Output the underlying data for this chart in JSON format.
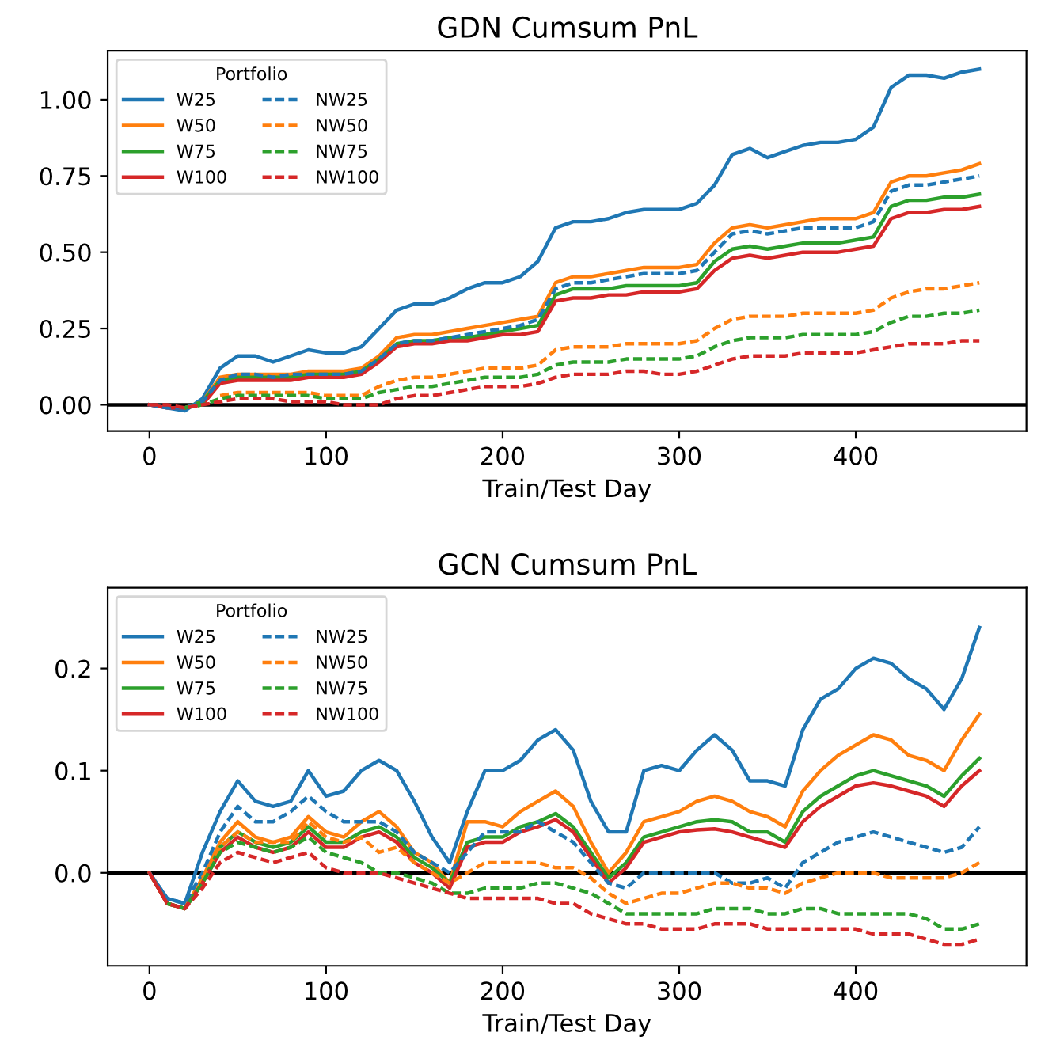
{
  "chart_data": [
    {
      "type": "line",
      "title": "GDN Cumsum PnL",
      "xlabel": "Train/Test Day",
      "legend_title": "Portfolio",
      "legend": "top left",
      "grid": false,
      "xlim": [
        -23.65,
        496.65
      ],
      "xticks": [
        0,
        100,
        200,
        300,
        400
      ],
      "ylim": [
        -0.086,
        1.16
      ],
      "yticks": [
        {
          "value": 0,
          "label": "0.00"
        },
        {
          "value": 0.25,
          "label": "0.25"
        },
        {
          "value": 0.5,
          "label": "0.50"
        },
        {
          "value": 0.75,
          "label": "0.75"
        },
        {
          "value": 1.0,
          "label": "1.00"
        }
      ],
      "ref_lines": [
        {
          "axis": "y",
          "value": 0,
          "label": null,
          "color": "#000000"
        }
      ],
      "x": [
        0,
        10,
        20,
        30,
        40,
        50,
        60,
        70,
        80,
        90,
        100,
        110,
        120,
        130,
        140,
        150,
        160,
        170,
        180,
        190,
        200,
        210,
        220,
        230,
        240,
        250,
        260,
        270,
        280,
        290,
        300,
        310,
        320,
        330,
        340,
        350,
        360,
        370,
        380,
        390,
        400,
        410,
        420,
        430,
        440,
        450,
        460,
        470
      ],
      "series": [
        {
          "name": "W25",
          "color": "#1f77b4",
          "line_style": "solid",
          "values": [
            0,
            -0.01,
            -0.02,
            0.02,
            0.12,
            0.16,
            0.16,
            0.14,
            0.16,
            0.18,
            0.17,
            0.17,
            0.19,
            0.25,
            0.31,
            0.33,
            0.33,
            0.35,
            0.38,
            0.4,
            0.4,
            0.42,
            0.47,
            0.58,
            0.6,
            0.6,
            0.61,
            0.63,
            0.64,
            0.64,
            0.64,
            0.66,
            0.72,
            0.82,
            0.84,
            0.81,
            0.83,
            0.85,
            0.86,
            0.86,
            0.87,
            0.91,
            1.04,
            1.08,
            1.08,
            1.07,
            1.09,
            1.1
          ]
        },
        {
          "name": "W50",
          "color": "#ff7f0e",
          "line_style": "solid",
          "values": [
            null,
            null,
            -0.01,
            0.01,
            0.09,
            0.1,
            0.1,
            0.1,
            0.1,
            0.11,
            0.11,
            0.11,
            0.12,
            0.16,
            0.22,
            0.23,
            0.23,
            0.24,
            0.25,
            0.26,
            0.27,
            0.28,
            0.29,
            0.4,
            0.42,
            0.42,
            0.43,
            0.44,
            0.45,
            0.45,
            0.45,
            0.46,
            0.53,
            0.58,
            0.59,
            0.58,
            0.59,
            0.6,
            0.61,
            0.61,
            0.61,
            0.63,
            0.73,
            0.75,
            0.75,
            0.76,
            0.77,
            0.79
          ]
        },
        {
          "name": "W75",
          "color": "#2ca02c",
          "line_style": "solid",
          "values": [
            null,
            null,
            -0.01,
            0.01,
            0.08,
            0.09,
            0.09,
            0.09,
            0.09,
            0.1,
            0.1,
            0.1,
            0.11,
            0.15,
            0.2,
            0.21,
            0.21,
            0.22,
            0.22,
            0.23,
            0.24,
            0.25,
            0.26,
            0.36,
            0.38,
            0.38,
            0.38,
            0.39,
            0.39,
            0.39,
            0.39,
            0.4,
            0.47,
            0.51,
            0.52,
            0.51,
            0.52,
            0.53,
            0.53,
            0.53,
            0.54,
            0.55,
            0.65,
            0.67,
            0.67,
            0.68,
            0.68,
            0.69
          ]
        },
        {
          "name": "W100",
          "color": "#d62728",
          "line_style": "solid",
          "values": [
            0,
            -0.01,
            -0.01,
            0.0,
            0.07,
            0.08,
            0.08,
            0.08,
            0.08,
            0.09,
            0.09,
            0.09,
            0.1,
            0.14,
            0.19,
            0.2,
            0.2,
            0.21,
            0.21,
            0.22,
            0.23,
            0.23,
            0.24,
            0.34,
            0.35,
            0.35,
            0.36,
            0.36,
            0.37,
            0.37,
            0.37,
            0.38,
            0.44,
            0.48,
            0.49,
            0.48,
            0.49,
            0.5,
            0.5,
            0.5,
            0.51,
            0.52,
            0.61,
            0.63,
            0.63,
            0.64,
            0.64,
            0.65
          ]
        },
        {
          "name": "NW25",
          "color": "#1f77b4",
          "line_style": "dashed",
          "values": [
            0,
            -0.01,
            -0.01,
            0.01,
            0.08,
            0.1,
            0.1,
            0.09,
            0.1,
            0.1,
            0.1,
            0.1,
            0.11,
            0.15,
            0.2,
            0.21,
            0.21,
            0.22,
            0.23,
            0.24,
            0.25,
            0.26,
            0.28,
            0.38,
            0.4,
            0.4,
            0.41,
            0.42,
            0.43,
            0.43,
            0.43,
            0.44,
            0.5,
            0.56,
            0.57,
            0.56,
            0.57,
            0.58,
            0.58,
            0.58,
            0.58,
            0.6,
            0.7,
            0.72,
            0.72,
            0.73,
            0.74,
            0.75
          ]
        },
        {
          "name": "NW50",
          "color": "#ff7f0e",
          "line_style": "dashed",
          "values": [
            null,
            null,
            null,
            null,
            0.03,
            0.04,
            0.04,
            0.04,
            0.04,
            0.04,
            0.03,
            0.03,
            0.03,
            0.06,
            0.08,
            0.09,
            0.09,
            0.1,
            0.11,
            0.12,
            0.12,
            0.12,
            0.13,
            0.18,
            0.19,
            0.19,
            0.19,
            0.2,
            0.2,
            0.2,
            0.2,
            0.21,
            0.25,
            0.28,
            0.29,
            0.29,
            0.29,
            0.3,
            0.3,
            0.3,
            0.3,
            0.31,
            0.35,
            0.37,
            0.38,
            0.38,
            0.39,
            0.4
          ]
        },
        {
          "name": "NW75",
          "color": "#2ca02c",
          "line_style": "dashed",
          "values": [
            null,
            null,
            -0.01,
            0.0,
            0.02,
            0.03,
            0.03,
            0.03,
            0.03,
            0.03,
            0.02,
            0.02,
            0.02,
            0.04,
            0.05,
            0.06,
            0.06,
            0.07,
            0.08,
            0.09,
            0.09,
            0.09,
            0.1,
            0.13,
            0.14,
            0.14,
            0.14,
            0.15,
            0.15,
            0.15,
            0.15,
            0.16,
            0.19,
            0.21,
            0.22,
            0.22,
            0.22,
            0.23,
            0.23,
            0.23,
            0.23,
            0.24,
            0.27,
            0.29,
            0.29,
            0.3,
            0.3,
            0.31
          ]
        },
        {
          "name": "NW100",
          "color": "#d62728",
          "line_style": "dashed",
          "values": [
            0,
            0,
            -0.01,
            0.0,
            0.01,
            0.02,
            0.02,
            0.02,
            0.01,
            0.01,
            0.01,
            0.0,
            0.0,
            0.0,
            0.02,
            0.03,
            0.03,
            0.04,
            0.05,
            0.06,
            0.06,
            0.06,
            0.07,
            0.09,
            0.1,
            0.1,
            0.1,
            0.11,
            0.11,
            0.1,
            0.1,
            0.11,
            0.13,
            0.15,
            0.16,
            0.16,
            0.16,
            0.17,
            0.17,
            0.17,
            0.17,
            0.18,
            0.19,
            0.2,
            0.2,
            0.2,
            0.21,
            0.21
          ]
        }
      ]
    },
    {
      "type": "line",
      "title": "GCN Cumsum PnL",
      "xlabel": "Train/Test Day",
      "legend_title": "Portfolio",
      "legend": "top left",
      "grid": false,
      "xlim": [
        -23.65,
        496.65
      ],
      "xticks": [
        0,
        100,
        200,
        300,
        400
      ],
      "ylim": [
        -0.091,
        0.279
      ],
      "yticks": [
        {
          "value": 0,
          "label": "0.0"
        },
        {
          "value": 0.1,
          "label": "0.1"
        },
        {
          "value": 0.2,
          "label": "0.2"
        }
      ],
      "ref_lines": [
        {
          "axis": "y",
          "value": 0,
          "label": null,
          "color": "#000000"
        }
      ],
      "x": [
        0,
        10,
        20,
        30,
        40,
        50,
        60,
        70,
        80,
        90,
        100,
        110,
        120,
        130,
        140,
        150,
        160,
        170,
        180,
        190,
        200,
        210,
        220,
        230,
        240,
        250,
        260,
        270,
        280,
        290,
        300,
        310,
        320,
        330,
        340,
        350,
        360,
        370,
        380,
        390,
        400,
        410,
        420,
        430,
        440,
        450,
        460,
        470
      ],
      "series": [
        {
          "name": "W25",
          "color": "#1f77b4",
          "line_style": "solid",
          "values": [
            0,
            -0.025,
            -0.03,
            0.02,
            0.06,
            0.09,
            0.07,
            0.065,
            0.07,
            0.1,
            0.075,
            0.08,
            0.1,
            0.11,
            0.1,
            0.07,
            0.035,
            0.01,
            0.06,
            0.1,
            0.1,
            0.11,
            0.13,
            0.14,
            0.12,
            0.07,
            0.04,
            0.04,
            0.1,
            0.105,
            0.1,
            0.12,
            0.135,
            0.12,
            0.09,
            0.09,
            0.085,
            0.14,
            0.17,
            0.18,
            0.2,
            0.21,
            0.205,
            0.19,
            0.18,
            0.16,
            0.19,
            0.24
          ]
        },
        {
          "name": "W50",
          "color": "#ff7f0e",
          "line_style": "solid",
          "values": [
            0,
            -0.03,
            -0.035,
            -0.005,
            0.03,
            0.05,
            0.035,
            0.03,
            0.035,
            0.055,
            0.04,
            0.035,
            0.05,
            0.06,
            0.045,
            0.02,
            0.01,
            -0.01,
            0.05,
            0.05,
            0.045,
            0.06,
            0.07,
            0.08,
            0.065,
            0.03,
            0.0,
            0.02,
            0.05,
            0.055,
            0.06,
            0.07,
            0.075,
            0.07,
            0.06,
            0.055,
            0.045,
            0.08,
            0.1,
            0.115,
            0.125,
            0.135,
            0.13,
            0.115,
            0.11,
            0.1,
            0.13,
            0.155
          ]
        },
        {
          "name": "W75",
          "color": "#2ca02c",
          "line_style": "solid",
          "values": [
            0,
            -0.03,
            -0.035,
            -0.01,
            0.025,
            0.04,
            0.03,
            0.025,
            0.03,
            0.045,
            0.03,
            0.03,
            0.04,
            0.045,
            0.035,
            0.015,
            0.005,
            -0.01,
            0.03,
            0.035,
            0.035,
            0.045,
            0.05,
            0.058,
            0.045,
            0.02,
            -0.005,
            0.01,
            0.035,
            0.04,
            0.045,
            0.05,
            0.052,
            0.05,
            0.04,
            0.04,
            0.03,
            0.06,
            0.075,
            0.085,
            0.095,
            0.1,
            0.095,
            0.09,
            0.085,
            0.075,
            0.095,
            0.112
          ]
        },
        {
          "name": "W100",
          "color": "#d62728",
          "line_style": "solid",
          "values": [
            0,
            -0.03,
            -0.035,
            -0.01,
            0.02,
            0.035,
            0.025,
            0.02,
            0.025,
            0.04,
            0.025,
            0.025,
            0.035,
            0.04,
            0.03,
            0.01,
            0.0,
            -0.015,
            0.025,
            0.03,
            0.03,
            0.04,
            0.045,
            0.052,
            0.04,
            0.015,
            -0.01,
            0.005,
            0.03,
            0.035,
            0.04,
            0.042,
            0.043,
            0.04,
            0.035,
            0.03,
            0.025,
            0.05,
            0.065,
            0.075,
            0.085,
            0.088,
            0.085,
            0.08,
            0.075,
            0.065,
            0.085,
            0.1
          ]
        },
        {
          "name": "NW25",
          "color": "#1f77b4",
          "line_style": "dashed",
          "values": [
            0,
            -0.025,
            -0.03,
            0.0,
            0.04,
            0.065,
            0.05,
            0.05,
            0.06,
            0.075,
            0.06,
            0.05,
            0.05,
            0.05,
            0.04,
            0.02,
            0.01,
            0.0,
            0.02,
            0.04,
            0.04,
            0.04,
            0.05,
            0.04,
            0.03,
            0.01,
            -0.01,
            -0.015,
            0.0,
            0.0,
            0.0,
            0.0,
            0.0,
            -0.01,
            -0.01,
            -0.005,
            -0.015,
            0.01,
            0.02,
            0.03,
            0.035,
            0.04,
            0.035,
            0.03,
            0.025,
            0.02,
            0.025,
            0.045
          ]
        },
        {
          "name": "NW50",
          "color": "#ff7f0e",
          "line_style": "dashed",
          "values": [
            null,
            null,
            null,
            -0.005,
            0.025,
            0.04,
            0.03,
            0.03,
            0.03,
            0.05,
            0.035,
            0.03,
            0.035,
            0.02,
            0.025,
            0.01,
            0.0,
            -0.01,
            0.0,
            0.01,
            0.01,
            0.01,
            0.01,
            0.005,
            0.005,
            -0.005,
            -0.02,
            -0.03,
            -0.025,
            -0.02,
            -0.02,
            -0.015,
            -0.01,
            -0.01,
            -0.015,
            -0.015,
            -0.02,
            -0.01,
            -0.005,
            0.0,
            0.0,
            0.0,
            -0.005,
            -0.005,
            -0.005,
            -0.005,
            0.0,
            0.01
          ]
        },
        {
          "name": "NW75",
          "color": "#2ca02c",
          "line_style": "dashed",
          "values": [
            null,
            -0.03,
            -0.035,
            -0.01,
            0.02,
            0.03,
            0.025,
            0.02,
            0.025,
            0.035,
            0.02,
            0.015,
            0.01,
            0.0,
            0.0,
            -0.005,
            -0.01,
            -0.02,
            -0.02,
            -0.015,
            -0.015,
            -0.015,
            -0.01,
            -0.01,
            -0.015,
            -0.02,
            -0.03,
            -0.04,
            -0.04,
            -0.04,
            -0.04,
            -0.04,
            -0.035,
            -0.035,
            -0.035,
            -0.04,
            -0.04,
            -0.035,
            -0.035,
            -0.04,
            -0.04,
            -0.04,
            -0.04,
            -0.04,
            -0.045,
            -0.055,
            -0.055,
            -0.05
          ]
        },
        {
          "name": "NW100",
          "color": "#d62728",
          "line_style": "dashed",
          "values": [
            0,
            -0.03,
            -0.035,
            -0.015,
            0.01,
            0.02,
            0.015,
            0.01,
            0.015,
            0.02,
            0.005,
            0.0,
            0.0,
            0.0,
            -0.005,
            -0.01,
            -0.015,
            -0.02,
            -0.025,
            -0.025,
            -0.025,
            -0.025,
            -0.025,
            -0.03,
            -0.03,
            -0.04,
            -0.045,
            -0.05,
            -0.05,
            -0.055,
            -0.055,
            -0.055,
            -0.05,
            -0.05,
            -0.05,
            -0.055,
            -0.055,
            -0.055,
            -0.055,
            -0.055,
            -0.055,
            -0.06,
            -0.06,
            -0.06,
            -0.065,
            -0.07,
            -0.07,
            -0.065
          ]
        }
      ]
    }
  ]
}
